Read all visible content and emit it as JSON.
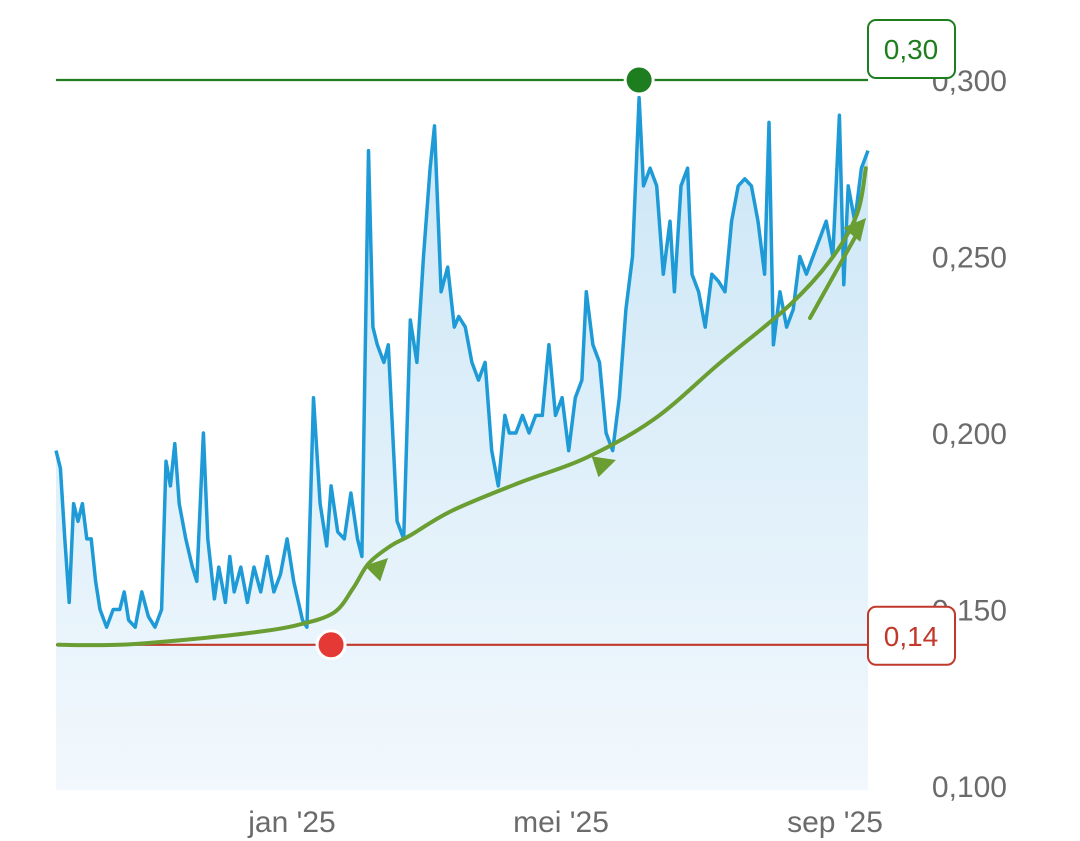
{
  "chart_data": {
    "type": "line",
    "x_ticks": [
      "jan '25",
      "mei '25",
      "sep '25"
    ],
    "y_ticks": [
      "0,300",
      "0,250",
      "0,200",
      "0,150",
      "0,100"
    ],
    "ylim": [
      0.1,
      0.3
    ],
    "grid": false,
    "reference_lines": [
      {
        "label": "0,30",
        "value": 0.3,
        "color": "#1e7d1e"
      },
      {
        "label": "0,14",
        "value": 0.14,
        "color": "#c0392b"
      }
    ],
    "markers": [
      {
        "date": "2025-05-25",
        "value": 0.3,
        "color": "#1e7d1e"
      },
      {
        "date": "2025-01-05",
        "value": 0.14,
        "color": "#e53935"
      }
    ],
    "colors": {
      "line": "#1e9bd7",
      "area": "#d6ecf8",
      "trend": "#6a9e32"
    },
    "series": [
      {
        "values": [
          [
            "2024-09-02",
            0.195
          ],
          [
            "2024-09-04",
            0.19
          ],
          [
            "2024-09-06",
            0.17
          ],
          [
            "2024-09-08",
            0.152
          ],
          [
            "2024-09-10",
            0.18
          ],
          [
            "2024-09-12",
            0.175
          ],
          [
            "2024-09-14",
            0.18
          ],
          [
            "2024-09-16",
            0.17
          ],
          [
            "2024-09-18",
            0.17
          ],
          [
            "2024-09-20",
            0.158
          ],
          [
            "2024-09-22",
            0.15
          ],
          [
            "2024-09-25",
            0.145
          ],
          [
            "2024-09-28",
            0.15
          ],
          [
            "2024-10-01",
            0.15
          ],
          [
            "2024-10-03",
            0.155
          ],
          [
            "2024-10-05",
            0.147
          ],
          [
            "2024-10-08",
            0.145
          ],
          [
            "2024-10-11",
            0.155
          ],
          [
            "2024-10-14",
            0.148
          ],
          [
            "2024-10-17",
            0.145
          ],
          [
            "2024-10-20",
            0.15
          ],
          [
            "2024-10-22",
            0.192
          ],
          [
            "2024-10-24",
            0.185
          ],
          [
            "2024-10-26",
            0.197
          ],
          [
            "2024-10-28",
            0.18
          ],
          [
            "2024-10-31",
            0.17
          ],
          [
            "2024-11-03",
            0.162
          ],
          [
            "2024-11-05",
            0.158
          ],
          [
            "2024-11-08",
            0.2
          ],
          [
            "2024-11-10",
            0.17
          ],
          [
            "2024-11-13",
            0.153
          ],
          [
            "2024-11-15",
            0.162
          ],
          [
            "2024-11-18",
            0.152
          ],
          [
            "2024-11-20",
            0.165
          ],
          [
            "2024-11-22",
            0.155
          ],
          [
            "2024-11-25",
            0.162
          ],
          [
            "2024-11-28",
            0.152
          ],
          [
            "2024-12-01",
            0.162
          ],
          [
            "2024-12-04",
            0.155
          ],
          [
            "2024-12-07",
            0.165
          ],
          [
            "2024-12-10",
            0.155
          ],
          [
            "2024-12-13",
            0.16
          ],
          [
            "2024-12-16",
            0.17
          ],
          [
            "2024-12-19",
            0.158
          ],
          [
            "2024-12-23",
            0.147
          ],
          [
            "2024-12-25",
            0.145
          ],
          [
            "2024-12-28",
            0.21
          ],
          [
            "2024-12-31",
            0.18
          ],
          [
            "2025-01-03",
            0.168
          ],
          [
            "2025-01-05",
            0.185
          ],
          [
            "2025-01-08",
            0.172
          ],
          [
            "2025-01-11",
            0.17
          ],
          [
            "2025-01-14",
            0.183
          ],
          [
            "2025-01-17",
            0.17
          ],
          [
            "2025-01-19",
            0.165
          ],
          [
            "2025-01-22",
            0.28
          ],
          [
            "2025-01-24",
            0.23
          ],
          [
            "2025-01-26",
            0.225
          ],
          [
            "2025-01-29",
            0.22
          ],
          [
            "2025-01-31",
            0.225
          ],
          [
            "2025-02-04",
            0.175
          ],
          [
            "2025-02-07",
            0.17
          ],
          [
            "2025-02-10",
            0.232
          ],
          [
            "2025-02-13",
            0.22
          ],
          [
            "2025-02-16",
            0.25
          ],
          [
            "2025-02-19",
            0.275
          ],
          [
            "2025-02-21",
            0.287
          ],
          [
            "2025-02-24",
            0.24
          ],
          [
            "2025-02-27",
            0.247
          ],
          [
            "2025-03-02",
            0.23
          ],
          [
            "2025-03-04",
            0.233
          ],
          [
            "2025-03-07",
            0.23
          ],
          [
            "2025-03-10",
            0.22
          ],
          [
            "2025-03-13",
            0.215
          ],
          [
            "2025-03-16",
            0.22
          ],
          [
            "2025-03-19",
            0.195
          ],
          [
            "2025-03-22",
            0.185
          ],
          [
            "2025-03-25",
            0.205
          ],
          [
            "2025-03-27",
            0.2
          ],
          [
            "2025-03-30",
            0.2
          ],
          [
            "2025-04-02",
            0.205
          ],
          [
            "2025-04-05",
            0.2
          ],
          [
            "2025-04-08",
            0.205
          ],
          [
            "2025-04-11",
            0.205
          ],
          [
            "2025-04-14",
            0.225
          ],
          [
            "2025-04-17",
            0.205
          ],
          [
            "2025-04-20",
            0.21
          ],
          [
            "2025-04-23",
            0.195
          ],
          [
            "2025-04-26",
            0.21
          ],
          [
            "2025-04-29",
            0.215
          ],
          [
            "2025-05-01",
            0.24
          ],
          [
            "2025-05-04",
            0.225
          ],
          [
            "2025-05-07",
            0.22
          ],
          [
            "2025-05-10",
            0.2
          ],
          [
            "2025-05-13",
            0.195
          ],
          [
            "2025-05-16",
            0.21
          ],
          [
            "2025-05-19",
            0.235
          ],
          [
            "2025-05-22",
            0.25
          ],
          [
            "2025-05-25",
            0.295
          ],
          [
            "2025-05-27",
            0.27
          ],
          [
            "2025-05-30",
            0.275
          ],
          [
            "2025-06-02",
            0.27
          ],
          [
            "2025-06-05",
            0.245
          ],
          [
            "2025-06-08",
            0.26
          ],
          [
            "2025-06-10",
            0.24
          ],
          [
            "2025-06-13",
            0.27
          ],
          [
            "2025-06-16",
            0.275
          ],
          [
            "2025-06-18",
            0.245
          ],
          [
            "2025-06-21",
            0.24
          ],
          [
            "2025-06-24",
            0.23
          ],
          [
            "2025-06-27",
            0.245
          ],
          [
            "2025-06-30",
            0.243
          ],
          [
            "2025-07-03",
            0.24
          ],
          [
            "2025-07-06",
            0.26
          ],
          [
            "2025-07-09",
            0.27
          ],
          [
            "2025-07-12",
            0.272
          ],
          [
            "2025-07-15",
            0.27
          ],
          [
            "2025-07-18",
            0.26
          ],
          [
            "2025-07-21",
            0.245
          ],
          [
            "2025-07-23",
            0.288
          ],
          [
            "2025-07-25",
            0.225
          ],
          [
            "2025-07-28",
            0.24
          ],
          [
            "2025-07-31",
            0.23
          ],
          [
            "2025-08-03",
            0.235
          ],
          [
            "2025-08-06",
            0.25
          ],
          [
            "2025-08-09",
            0.245
          ],
          [
            "2025-08-12",
            0.25
          ],
          [
            "2025-08-15",
            0.255
          ],
          [
            "2025-08-18",
            0.26
          ],
          [
            "2025-08-21",
            0.25
          ],
          [
            "2025-08-24",
            0.29
          ],
          [
            "2025-08-26",
            0.242
          ],
          [
            "2025-08-28",
            0.27
          ],
          [
            "2025-08-31",
            0.26
          ],
          [
            "2025-09-03",
            0.275
          ],
          [
            "2025-09-06",
            0.28
          ]
        ]
      },
      {
        "values": [
          [
            "2024-09-03",
            0.14
          ],
          [
            "2024-10-01",
            0.14
          ],
          [
            "2024-11-01",
            0.1415
          ],
          [
            "2024-12-01",
            0.1435
          ],
          [
            "2024-12-20",
            0.1455
          ],
          [
            "2025-01-06",
            0.149
          ],
          [
            "2025-01-15",
            0.156
          ],
          [
            "2025-01-22",
            0.163
          ],
          [
            "2025-02-01",
            0.168
          ],
          [
            "2025-02-10",
            0.171
          ],
          [
            "2025-03-01",
            0.178
          ],
          [
            "2025-04-01",
            0.186
          ],
          [
            "2025-05-01",
            0.193
          ],
          [
            "2025-06-01",
            0.204
          ],
          [
            "2025-07-01",
            0.22
          ],
          [
            "2025-08-01",
            0.236
          ],
          [
            "2025-08-20",
            0.249
          ],
          [
            "2025-09-01",
            0.262
          ],
          [
            "2025-09-05",
            0.275
          ]
        ]
      }
    ]
  }
}
